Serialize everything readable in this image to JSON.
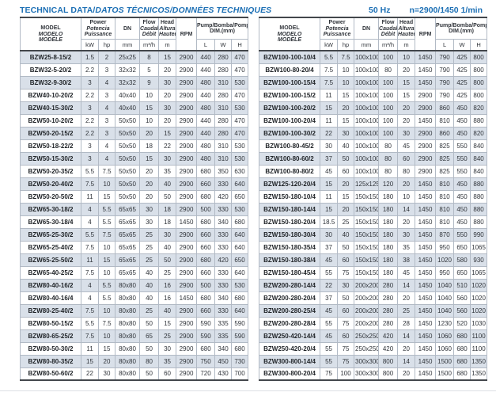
{
  "header": {
    "title_main": "TECHNICAL DATA/",
    "title_translations": "DATOS TÉCNICOS/DONNÉES TECHNIQUES",
    "frequency": "50 Hz",
    "speed": "n=2900/1450 1/min"
  },
  "columns": {
    "model": [
      "MODEL",
      "MODELO",
      "MODÈLE"
    ],
    "power": [
      "Power",
      "Potencia",
      "Puissance"
    ],
    "power_units": [
      "kW",
      "hp"
    ],
    "dn_label": "DN",
    "dn_unit": "mm",
    "flow": [
      "Flow",
      "Caudal",
      "Débit"
    ],
    "flow_unit": "m³/h",
    "head": [
      "Head",
      "Altura",
      "Hauteur"
    ],
    "head_unit": "m",
    "rpm_label": "RPM",
    "dim": [
      "Pump/Bomba/Pompe",
      "DIM.(mm)"
    ],
    "dim_units": [
      "L",
      "W",
      "H"
    ]
  },
  "left_table": {
    "rows": [
      [
        "BZW25-8-15/2",
        "1.5",
        "2",
        "25x25",
        "8",
        "15",
        "2900",
        "440",
        "280",
        "470"
      ],
      [
        "BZW32-5-20/2",
        "2.2",
        "3",
        "32x32",
        "5",
        "20",
        "2900",
        "440",
        "280",
        "470"
      ],
      [
        "BZW32-9-30/2",
        "3",
        "4",
        "32x32",
        "9",
        "30",
        "2900",
        "480",
        "310",
        "530"
      ],
      [
        "BZW40-10-20/2",
        "2.2",
        "3",
        "40x40",
        "10",
        "20",
        "2900",
        "440",
        "280",
        "470"
      ],
      [
        "BZW40-15-30/2",
        "3",
        "4",
        "40x40",
        "15",
        "30",
        "2900",
        "480",
        "310",
        "530"
      ],
      [
        "BZW50-10-20/2",
        "2.2",
        "3",
        "50x50",
        "10",
        "20",
        "2900",
        "440",
        "280",
        "470"
      ],
      [
        "BZW50-20-15/2",
        "2.2",
        "3",
        "50x50",
        "20",
        "15",
        "2900",
        "440",
        "280",
        "470"
      ],
      [
        "BZW50-18-22/2",
        "3",
        "4",
        "50x50",
        "18",
        "22",
        "2900",
        "480",
        "310",
        "530"
      ],
      [
        "BZW50-15-30/2",
        "3",
        "4",
        "50x50",
        "15",
        "30",
        "2900",
        "480",
        "310",
        "530"
      ],
      [
        "BZW50-20-35/2",
        "5.5",
        "7.5",
        "50x50",
        "20",
        "35",
        "2900",
        "680",
        "350",
        "630"
      ],
      [
        "BZW50-20-40/2",
        "7.5",
        "10",
        "50x50",
        "20",
        "40",
        "2900",
        "660",
        "330",
        "640"
      ],
      [
        "BZW50-20-50/2",
        "11",
        "15",
        "50x50",
        "20",
        "50",
        "2900",
        "680",
        "420",
        "650"
      ],
      [
        "BZW65-30-18/2",
        "4",
        "5.5",
        "65x65",
        "30",
        "18",
        "2900",
        "500",
        "330",
        "530"
      ],
      [
        "BZW65-30-18/4",
        "4",
        "5.5",
        "65x65",
        "30",
        "18",
        "1450",
        "680",
        "340",
        "680"
      ],
      [
        "BZW65-25-30/2",
        "5.5",
        "7.5",
        "65x65",
        "25",
        "30",
        "2900",
        "660",
        "330",
        "640"
      ],
      [
        "BZW65-25-40/2",
        "7.5",
        "10",
        "65x65",
        "25",
        "40",
        "2900",
        "660",
        "330",
        "640"
      ],
      [
        "BZW65-25-50/2",
        "11",
        "15",
        "65x65",
        "25",
        "50",
        "2900",
        "680",
        "420",
        "650"
      ],
      [
        "BZW65-40-25/2",
        "7.5",
        "10",
        "65x65",
        "40",
        "25",
        "2900",
        "660",
        "330",
        "640"
      ],
      [
        "BZW80-40-16/2",
        "4",
        "5.5",
        "80x80",
        "40",
        "16",
        "2900",
        "500",
        "330",
        "530"
      ],
      [
        "BZW80-40-16/4",
        "4",
        "5.5",
        "80x80",
        "40",
        "16",
        "1450",
        "680",
        "340",
        "680"
      ],
      [
        "BZW80-25-40/2",
        "7.5",
        "10",
        "80x80",
        "25",
        "40",
        "2900",
        "660",
        "330",
        "640"
      ],
      [
        "BZW80-50-15/2",
        "5.5",
        "7.5",
        "80x80",
        "50",
        "15",
        "2900",
        "590",
        "335",
        "590"
      ],
      [
        "BZW80-65-25/2",
        "7.5",
        "10",
        "80x80",
        "65",
        "25",
        "2900",
        "590",
        "335",
        "590"
      ],
      [
        "BZW80-50-30/2",
        "11",
        "15",
        "80x80",
        "50",
        "30",
        "2900",
        "680",
        "340",
        "680"
      ],
      [
        "BZW80-80-35/2",
        "15",
        "20",
        "80x80",
        "80",
        "35",
        "2900",
        "750",
        "450",
        "730"
      ],
      [
        "BZW80-50-60/2",
        "22",
        "30",
        "80x80",
        "50",
        "60",
        "2900",
        "720",
        "430",
        "700"
      ]
    ]
  },
  "right_table": {
    "rows": [
      [
        "BZW100-100-10/4",
        "5.5",
        "7.5",
        "100x100",
        "100",
        "10",
        "1450",
        "790",
        "425",
        "800"
      ],
      [
        "BZW100-80-20/4",
        "7.5",
        "10",
        "100x100",
        "80",
        "20",
        "1450",
        "790",
        "425",
        "800"
      ],
      [
        "BZW100-100-15/4",
        "7.5",
        "10",
        "100x100",
        "100",
        "15",
        "1450",
        "790",
        "425",
        "800"
      ],
      [
        "BZW100-100-15/2",
        "11",
        "15",
        "100x100",
        "100",
        "15",
        "2900",
        "790",
        "425",
        "800"
      ],
      [
        "BZW100-100-20/2",
        "15",
        "20",
        "100x100",
        "100",
        "20",
        "2900",
        "860",
        "450",
        "820"
      ],
      [
        "BZW100-100-20/4",
        "11",
        "15",
        "100x100",
        "100",
        "20",
        "1450",
        "810",
        "450",
        "880"
      ],
      [
        "BZW100-100-30/2",
        "22",
        "30",
        "100x100",
        "100",
        "30",
        "2900",
        "860",
        "450",
        "820"
      ],
      [
        "BZW100-80-45/2",
        "30",
        "40",
        "100x100",
        "80",
        "45",
        "2900",
        "825",
        "550",
        "840"
      ],
      [
        "BZW100-80-60/2",
        "37",
        "50",
        "100x100",
        "80",
        "60",
        "2900",
        "825",
        "550",
        "840"
      ],
      [
        "BZW100-80-80/2",
        "45",
        "60",
        "100x100",
        "80",
        "80",
        "2900",
        "825",
        "550",
        "840"
      ],
      [
        "BZW125-120-20/4",
        "15",
        "20",
        "125x125",
        "120",
        "20",
        "1450",
        "810",
        "450",
        "880"
      ],
      [
        "BZW150-180-10/4",
        "11",
        "15",
        "150x150",
        "180",
        "10",
        "1450",
        "810",
        "450",
        "880"
      ],
      [
        "BZW150-180-14/4",
        "15",
        "20",
        "150x150",
        "180",
        "14",
        "1450",
        "810",
        "450",
        "880"
      ],
      [
        "BZW150-180-20/4",
        "18.5",
        "25",
        "150x150",
        "180",
        "20",
        "1450",
        "810",
        "450",
        "880"
      ],
      [
        "BZW150-180-30/4",
        "30",
        "40",
        "150x150",
        "180",
        "30",
        "1450",
        "870",
        "550",
        "990"
      ],
      [
        "BZW150-180-35/4",
        "37",
        "50",
        "150x150",
        "180",
        "35",
        "1450",
        "950",
        "650",
        "1065"
      ],
      [
        "BZW150-180-38/4",
        "45",
        "60",
        "150x150",
        "180",
        "38",
        "1450",
        "1020",
        "580",
        "930"
      ],
      [
        "BZW150-180-45/4",
        "55",
        "75",
        "150x150",
        "180",
        "45",
        "1450",
        "950",
        "650",
        "1065"
      ],
      [
        "BZW200-280-14/4",
        "22",
        "30",
        "200x200",
        "280",
        "14",
        "1450",
        "1040",
        "510",
        "1020"
      ],
      [
        "BZW200-280-20/4",
        "37",
        "50",
        "200x200",
        "280",
        "20",
        "1450",
        "1040",
        "560",
        "1020"
      ],
      [
        "BZW200-280-25/4",
        "45",
        "60",
        "200x200",
        "280",
        "25",
        "1450",
        "1040",
        "560",
        "1020"
      ],
      [
        "BZW200-280-28/4",
        "55",
        "75",
        "200x200",
        "280",
        "28",
        "1450",
        "1230",
        "520",
        "1030"
      ],
      [
        "BZW250-420-14/4",
        "45",
        "60",
        "250x250",
        "420",
        "14",
        "1450",
        "1060",
        "680",
        "1100"
      ],
      [
        "BZW250-420-20/4",
        "55",
        "75",
        "250x250",
        "420",
        "20",
        "1450",
        "1060",
        "680",
        "1100"
      ],
      [
        "BZW300-800-14/4",
        "55",
        "75",
        "300x300",
        "800",
        "14",
        "1450",
        "1500",
        "680",
        "1350"
      ],
      [
        "BZW300-800-20/4",
        "75",
        "100",
        "300x300",
        "800",
        "20",
        "1450",
        "1500",
        "680",
        "1350"
      ]
    ]
  },
  "colors": {
    "accent_blue": "#1d70b5",
    "row_shade": "#d9e0e9",
    "grid_line": "#b2bac5",
    "dark_rule": "#43474c"
  }
}
